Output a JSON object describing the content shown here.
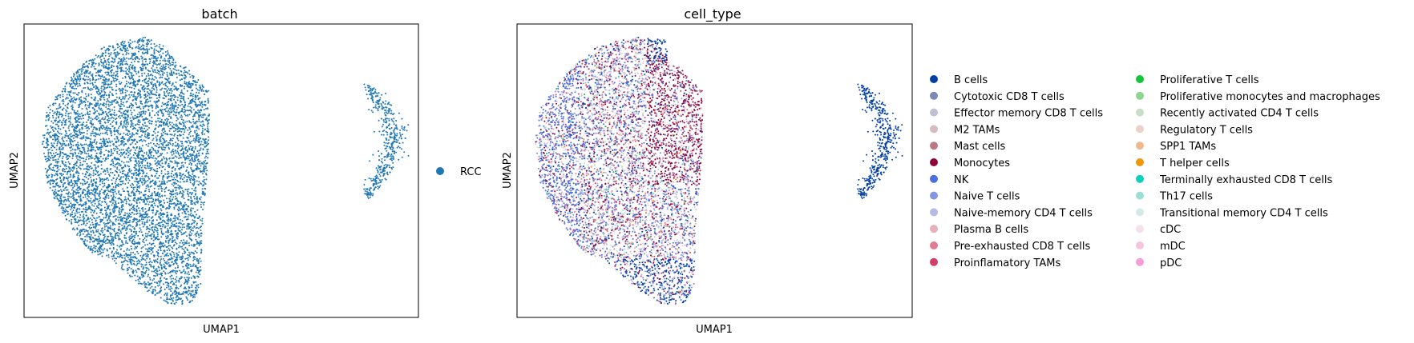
{
  "figure": {
    "panels": [
      {
        "title": "batch",
        "xlabel": "UMAP1",
        "ylabel": "UMAP2"
      },
      {
        "title": "cell_type",
        "xlabel": "UMAP1",
        "ylabel": "UMAP2"
      }
    ]
  },
  "chart_data": [
    {
      "type": "scatter",
      "title": "batch",
      "xlabel": "UMAP1",
      "ylabel": "UMAP2",
      "xticks": "none",
      "yticks": "none",
      "grid": false,
      "legend_placement": "right-outside",
      "legend": [
        {
          "name": "RCC",
          "color": "#1f77b4"
        }
      ],
      "clusters": [
        {
          "name": "main",
          "shape": "blob",
          "x_range": [
            0.05,
            0.48
          ],
          "y_range": [
            0.04,
            0.96
          ],
          "density": "high"
        },
        {
          "name": "arc",
          "shape": "arc",
          "x_range": [
            0.87,
            0.95
          ],
          "y_range": [
            0.43,
            0.82
          ],
          "density": "medium"
        }
      ]
    },
    {
      "type": "scatter",
      "title": "cell_type",
      "xlabel": "UMAP1",
      "ylabel": "UMAP2",
      "xticks": "none",
      "yticks": "none",
      "grid": false,
      "legend_placement": "right-outside",
      "legend_columns": 2,
      "legend": [
        {
          "name": "B cells",
          "color": "#023fa5"
        },
        {
          "name": "Cytotoxic CD8 T cells",
          "color": "#7d87b9"
        },
        {
          "name": "Effector memory CD8 T cells",
          "color": "#bec1d4"
        },
        {
          "name": "M2 TAMs",
          "color": "#d6bcc0"
        },
        {
          "name": "Mast cells",
          "color": "#bb7784"
        },
        {
          "name": "Monocytes",
          "color": "#8e063b"
        },
        {
          "name": "NK",
          "color": "#4a6fe3"
        },
        {
          "name": "Naive T cells",
          "color": "#8595e1"
        },
        {
          "name": "Naive-memory CD4 T cells",
          "color": "#b5bbe3"
        },
        {
          "name": "Plasma B cells",
          "color": "#e6afb9"
        },
        {
          "name": "Pre-exhausted CD8 T cells",
          "color": "#e07b91"
        },
        {
          "name": "Proinflamatory TAMs",
          "color": "#d33f6a"
        },
        {
          "name": "Proliferative T cells",
          "color": "#11c638"
        },
        {
          "name": "Proliferative monocytes and macrophages",
          "color": "#8dd593"
        },
        {
          "name": "Recently activated CD4 T cells",
          "color": "#c6dec7"
        },
        {
          "name": "Regulatory T cells",
          "color": "#ead3c6"
        },
        {
          "name": "SPP1 TAMs",
          "color": "#f0b98d"
        },
        {
          "name": "T helper cells",
          "color": "#ef9708"
        },
        {
          "name": "Terminally exhausted CD8 T cells",
          "color": "#0fcfc0"
        },
        {
          "name": "Th17 cells",
          "color": "#9cded6"
        },
        {
          "name": "Transitional memory CD4 T cells",
          "color": "#d5eae7"
        },
        {
          "name": "cDC",
          "color": "#f3e1eb"
        },
        {
          "name": "mDC",
          "color": "#f6c4e1"
        },
        {
          "name": "pDC",
          "color": "#f79cd4"
        }
      ],
      "clusters": [
        {
          "name": "main",
          "shape": "blob",
          "x_range": [
            0.05,
            0.48
          ],
          "y_range": [
            0.04,
            0.96
          ],
          "density": "high",
          "dominant": [
            "Monocytes",
            "NK",
            "B cells",
            "Naive T cells"
          ]
        },
        {
          "name": "arc",
          "shape": "arc",
          "x_range": [
            0.87,
            0.95
          ],
          "y_range": [
            0.43,
            0.82
          ],
          "density": "medium",
          "dominant": [
            "B cells"
          ]
        }
      ]
    }
  ]
}
